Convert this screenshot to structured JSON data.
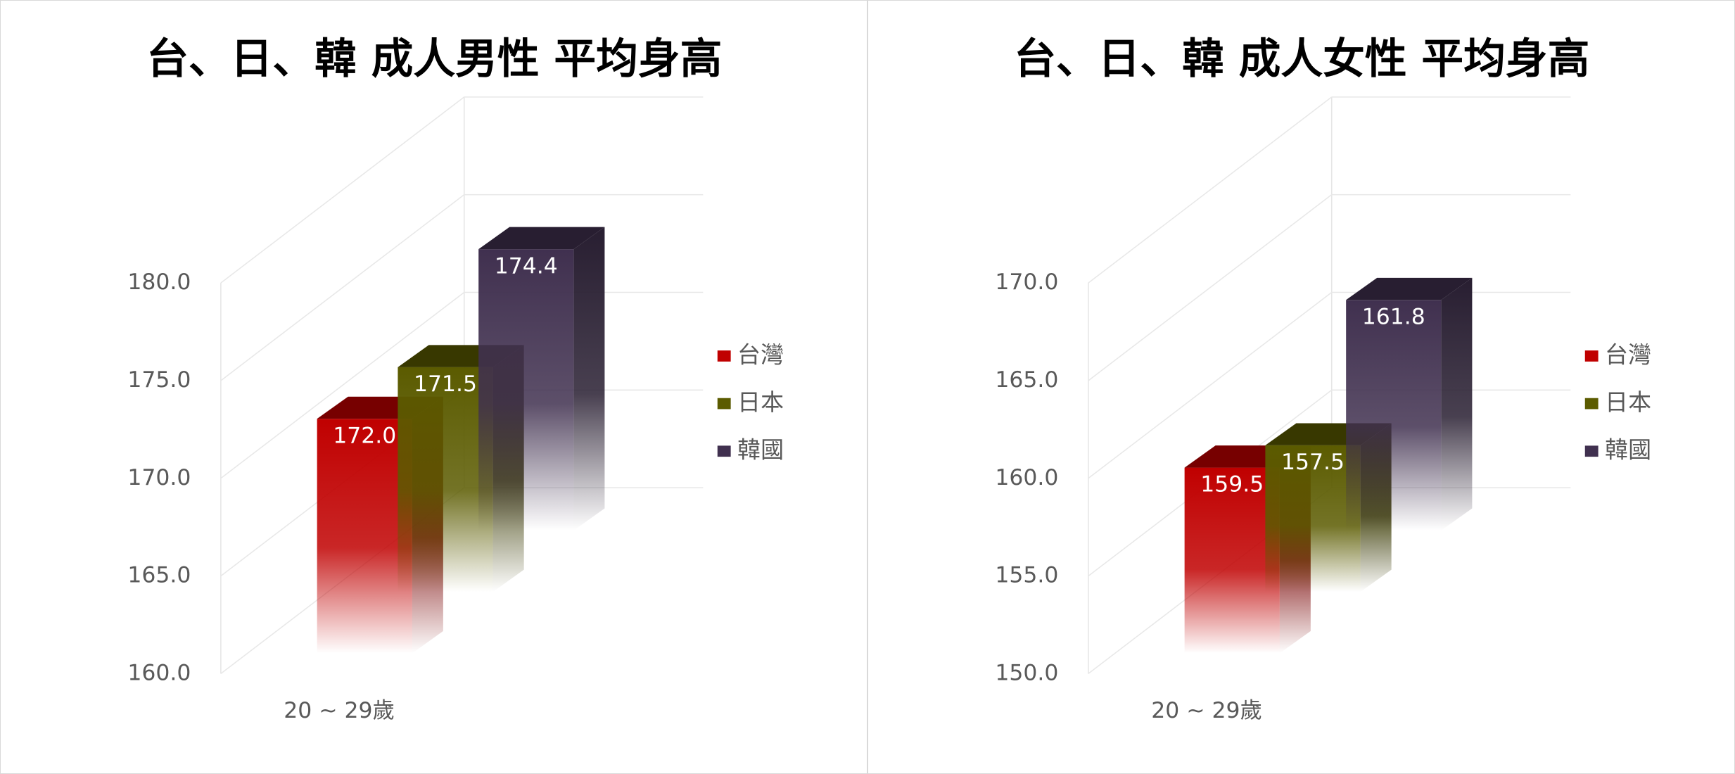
{
  "chart_data": [
    {
      "type": "bar3d",
      "title": "台、日、韓 成人男性 平均身高",
      "categories": [
        "20 ~ 29歲"
      ],
      "series": [
        {
          "name": "台灣",
          "color": "#c00000",
          "values": [
            172.0
          ],
          "value_labels": [
            "172.0"
          ]
        },
        {
          "name": "日本",
          "color": "#5b5b00",
          "values": [
            171.5
          ],
          "value_labels": [
            "171.5"
          ]
        },
        {
          "name": "韓國",
          "color": "#40304f",
          "values": [
            174.4
          ],
          "value_labels": [
            "174.4"
          ]
        }
      ],
      "ylim": [
        160,
        180
      ],
      "yticks": [
        {
          "value": 160,
          "label": "160.0"
        },
        {
          "value": 165,
          "label": "165.0"
        },
        {
          "value": 170,
          "label": "170.0"
        },
        {
          "value": 175,
          "label": "175.0"
        },
        {
          "value": 180,
          "label": "180.0"
        }
      ],
      "grid": true,
      "legend": "right"
    },
    {
      "type": "bar3d",
      "title": "台、日、韓 成人女性 平均身高",
      "categories": [
        "20 ~ 29歲"
      ],
      "series": [
        {
          "name": "台灣",
          "color": "#c00000",
          "values": [
            159.5
          ],
          "value_labels": [
            "159.5"
          ]
        },
        {
          "name": "日本",
          "color": "#5b5b00",
          "values": [
            157.5
          ],
          "value_labels": [
            "157.5"
          ]
        },
        {
          "name": "韓國",
          "color": "#40304f",
          "values": [
            161.8
          ],
          "value_labels": [
            "161.8"
          ]
        }
      ],
      "ylim": [
        150,
        170
      ],
      "yticks": [
        {
          "value": 150,
          "label": "150.0"
        },
        {
          "value": 155,
          "label": "155.0"
        },
        {
          "value": 160,
          "label": "160.0"
        },
        {
          "value": 165,
          "label": "165.0"
        },
        {
          "value": 170,
          "label": "170.0"
        }
      ],
      "grid": true,
      "legend": "right"
    }
  ]
}
